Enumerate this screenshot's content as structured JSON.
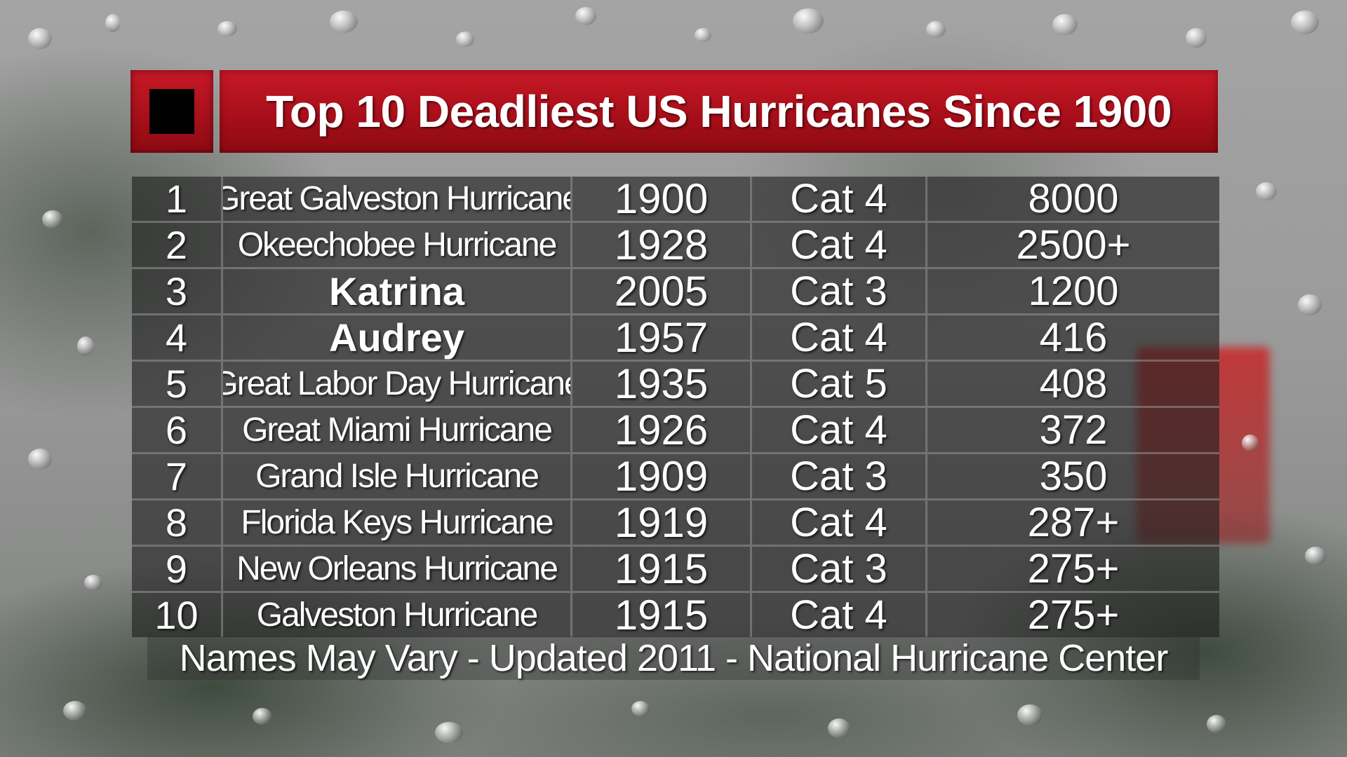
{
  "title": "Top 10 Deadliest US Hurricanes Since 1900",
  "icon": "stop-square-icon",
  "colors": {
    "title_red": "#c81826",
    "table_bg": "#1e1e1e",
    "text": "#ffffff"
  },
  "rows": [
    {
      "rank": "1",
      "name": "Great Galveston Hurricane",
      "year": "1900",
      "category": "Cat 4",
      "deaths": "8000"
    },
    {
      "rank": "2",
      "name": "Okeechobee Hurricane",
      "year": "1928",
      "category": "Cat 4",
      "deaths": "2500+"
    },
    {
      "rank": "3",
      "name": "Katrina",
      "year": "2005",
      "category": "Cat 3",
      "deaths": "1200"
    },
    {
      "rank": "4",
      "name": "Audrey",
      "year": "1957",
      "category": "Cat 4",
      "deaths": "416"
    },
    {
      "rank": "5",
      "name": "Great Labor Day Hurricane",
      "year": "1935",
      "category": "Cat 5",
      "deaths": "408"
    },
    {
      "rank": "6",
      "name": "Great Miami Hurricane",
      "year": "1926",
      "category": "Cat 4",
      "deaths": "372"
    },
    {
      "rank": "7",
      "name": "Grand Isle Hurricane",
      "year": "1909",
      "category": "Cat 3",
      "deaths": "350"
    },
    {
      "rank": "8",
      "name": "Florida Keys Hurricane",
      "year": "1919",
      "category": "Cat 4",
      "deaths": "287+"
    },
    {
      "rank": "9",
      "name": "New Orleans Hurricane",
      "year": "1915",
      "category": "Cat 3",
      "deaths": "275+"
    },
    {
      "rank": "10",
      "name": "Galveston Hurricane",
      "year": "1915",
      "category": "Cat 4",
      "deaths": "275+"
    }
  ],
  "footer": "Names May Vary - Updated 2011 - National Hurricane Center"
}
